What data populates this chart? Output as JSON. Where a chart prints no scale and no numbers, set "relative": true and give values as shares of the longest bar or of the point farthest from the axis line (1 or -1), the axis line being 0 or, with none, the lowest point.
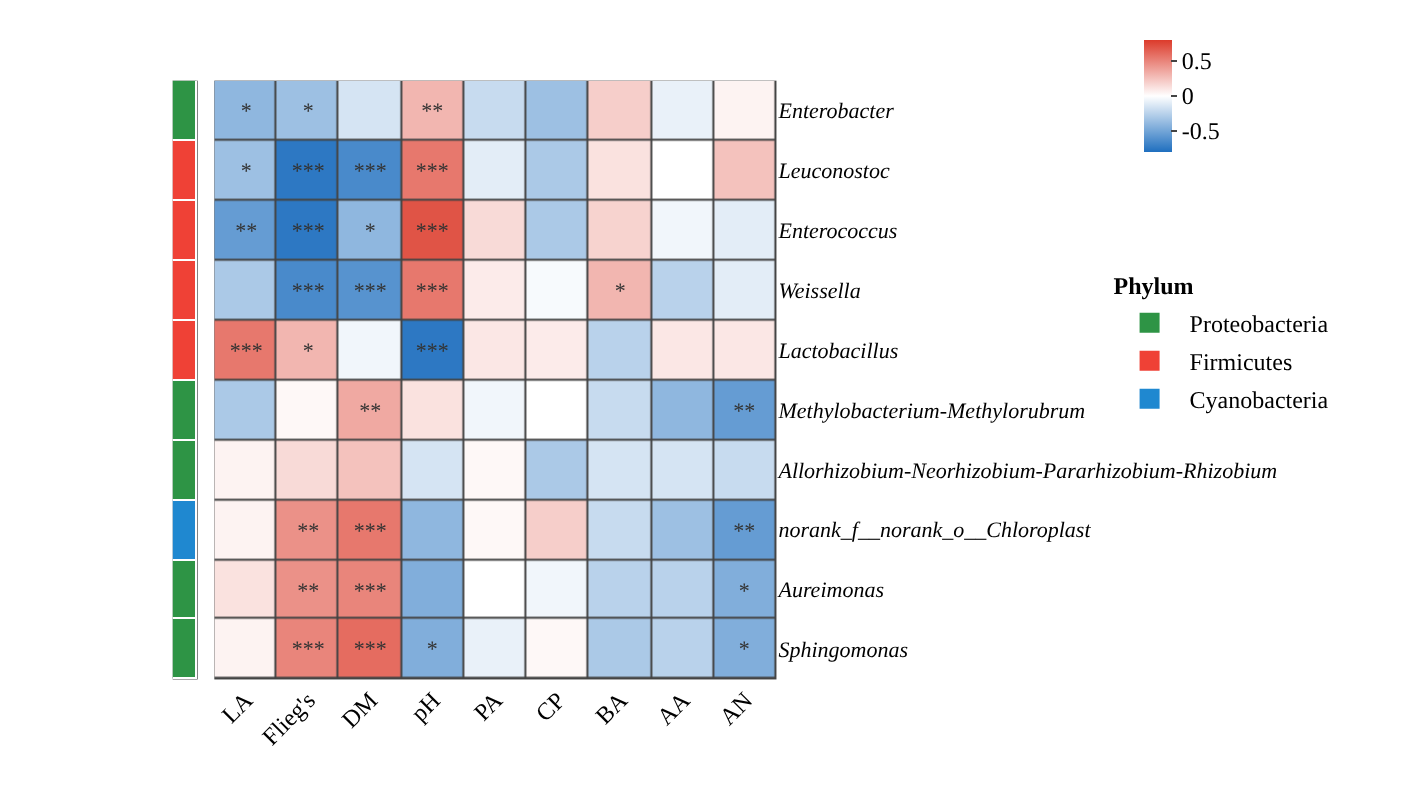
{
  "chart_data": [
    {
      "type": "heatmap",
      "categories": [
        "LA",
        "Flieg's",
        "DM",
        "pH",
        "PA",
        "CP",
        "BA",
        "AA",
        "AN"
      ],
      "y_categories": [
        "Enterobacter",
        "Leuconostoc",
        "Enterococcus",
        "Weissella",
        "Lactobacillus",
        "Methylobacterium-Methylorubrum",
        "Allorhizobium-Neorhizobium-Pararhizobium-Rhizobium",
        "norank_f__norank_o__Chloroplast",
        "Aureimonas",
        "Sphingomonas"
      ],
      "cells": [
        [
          -0.4,
          -0.35,
          -0.15,
          0.3,
          -0.2,
          -0.35,
          0.2,
          -0.08,
          0.05
        ],
        [
          -0.35,
          -0.75,
          -0.65,
          0.55,
          -0.1,
          -0.3,
          0.12,
          0.0,
          0.25
        ],
        [
          -0.55,
          -0.75,
          -0.4,
          0.7,
          0.15,
          -0.3,
          0.18,
          -0.05,
          -0.1
        ],
        [
          -0.3,
          -0.65,
          -0.6,
          0.55,
          0.08,
          -0.03,
          0.3,
          -0.25,
          -0.1
        ],
        [
          0.55,
          0.3,
          -0.05,
          -0.75,
          0.1,
          0.08,
          -0.25,
          0.1,
          0.1
        ],
        [
          -0.3,
          0.03,
          0.35,
          0.12,
          -0.05,
          0.0,
          -0.2,
          -0.4,
          -0.55
        ],
        [
          0.05,
          0.15,
          0.25,
          -0.15,
          0.03,
          -0.3,
          -0.15,
          -0.15,
          -0.2
        ],
        [
          0.05,
          0.45,
          0.55,
          -0.4,
          0.03,
          0.2,
          -0.2,
          -0.35,
          -0.55
        ],
        [
          0.12,
          0.45,
          0.5,
          -0.45,
          0.0,
          -0.05,
          -0.25,
          -0.25,
          -0.45
        ],
        [
          0.05,
          0.5,
          0.6,
          -0.45,
          -0.08,
          0.03,
          -0.3,
          -0.25,
          -0.45
        ]
      ],
      "cell_labels": [
        [
          "*",
          "*",
          null,
          "**",
          null,
          null,
          null,
          null,
          null
        ],
        [
          "*",
          "***",
          "***",
          "***",
          null,
          null,
          null,
          null,
          null
        ],
        [
          "**",
          "***",
          "*",
          "***",
          null,
          null,
          null,
          null,
          null
        ],
        [
          null,
          "***",
          "***",
          "***",
          null,
          null,
          "*",
          null,
          null
        ],
        [
          "***",
          "*",
          null,
          "***",
          null,
          null,
          null,
          null,
          null
        ],
        [
          null,
          null,
          "**",
          null,
          null,
          null,
          null,
          null,
          "**"
        ],
        [
          null,
          null,
          null,
          null,
          null,
          null,
          null,
          null,
          null
        ],
        [
          null,
          "**",
          "***",
          null,
          null,
          null,
          null,
          null,
          "**"
        ],
        [
          null,
          "**",
          "***",
          null,
          null,
          null,
          null,
          null,
          "*"
        ],
        [
          null,
          "***",
          "***",
          "*",
          null,
          null,
          null,
          null,
          "*"
        ]
      ],
      "clim": [
        -0.8,
        0.8
      ],
      "cticks": [
        0.5,
        0,
        -0.5
      ]
    },
    {
      "type": "bar",
      "orientation": "horizontal",
      "stacked": true,
      "relative": true,
      "categories": [
        null,
        null,
        null,
        null,
        null,
        null,
        null,
        null,
        null,
        null
      ],
      "legend_title": "Phylum",
      "legend": "right",
      "series": [
        {
          "name": "Proteobacteria",
          "color": "#2e9445",
          "values": [
            1,
            null,
            null,
            null,
            null,
            1,
            1,
            null,
            1,
            1
          ]
        },
        {
          "name": "Firmicutes",
          "color": "#ef4136",
          "values": [
            null,
            1,
            1,
            1,
            1,
            null,
            null,
            null,
            null,
            null
          ]
        },
        {
          "name": "Cyanobacteria",
          "color": "#1f88d0",
          "values": [
            null,
            null,
            null,
            null,
            null,
            null,
            null,
            1,
            null,
            null
          ]
        }
      ]
    }
  ]
}
